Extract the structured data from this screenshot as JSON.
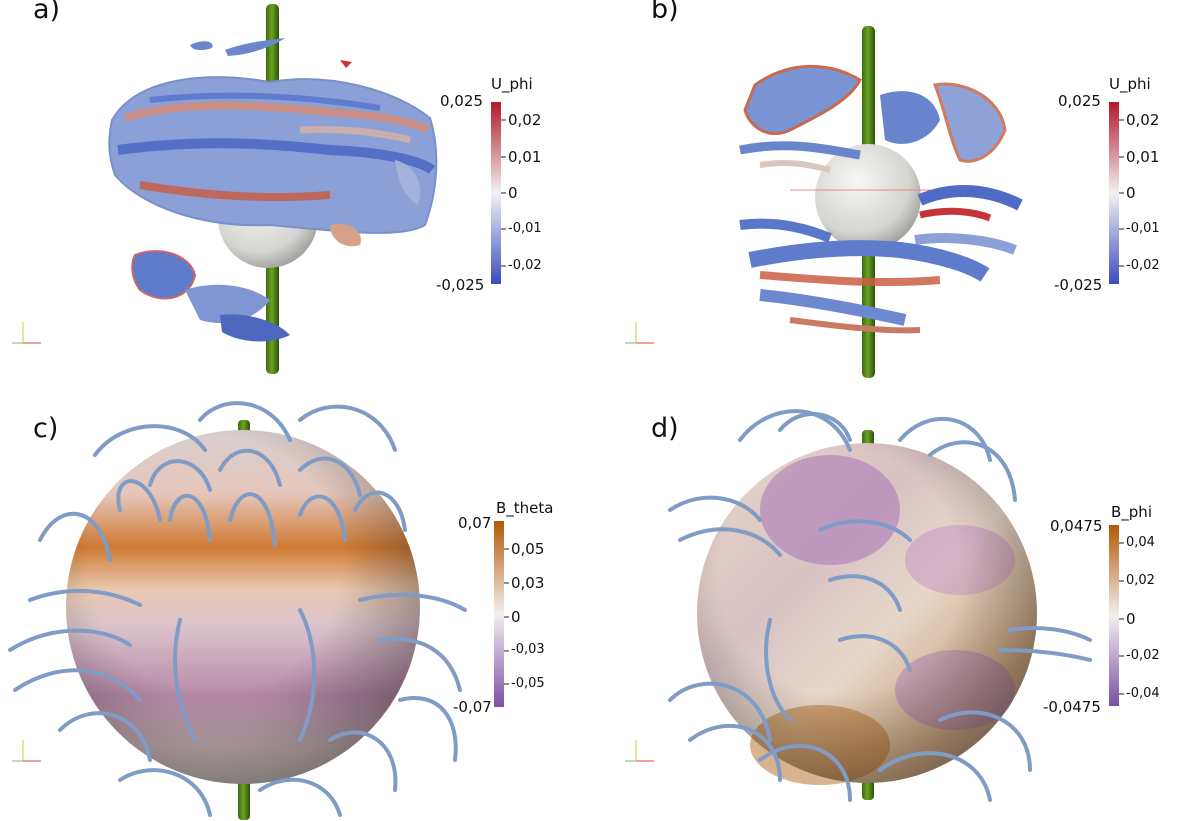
{
  "panels": [
    {
      "label": "a)",
      "colorbar": {
        "title": "U_phi",
        "max_label": "0,025",
        "min_label": "-0,025",
        "ticks": [
          "0,02",
          "0,01",
          "0",
          "-0,01",
          "-0,02"
        ],
        "colors": [
          "#b2182b",
          "#f2f2f2",
          "#3b4cc0"
        ]
      }
    },
    {
      "label": "b)",
      "colorbar": {
        "title": "U_phi",
        "max_label": "0,025",
        "min_label": "-0,025",
        "ticks": [
          "0,02",
          "0,01",
          "0",
          "-0,01",
          "-0,02"
        ],
        "colors": [
          "#b2182b",
          "#f2f2f2",
          "#3b4cc0"
        ]
      }
    },
    {
      "label": "c)",
      "colorbar": {
        "title": "B_theta",
        "max_label": "0,07",
        "min_label": "-0,07",
        "ticks": [
          "0,05",
          "0,03",
          "0",
          "-0,03",
          "-0,05"
        ],
        "colors": [
          "#b35806",
          "#f2f0ee",
          "#7b4fa6"
        ]
      }
    },
    {
      "label": "d)",
      "colorbar": {
        "title": "B_phi",
        "max_label": "0,0475",
        "min_label": "-0,0475",
        "ticks": [
          "0,04",
          "0,02",
          "0",
          "-0,02",
          "-0,04"
        ],
        "colors": [
          "#b35806",
          "#f2f0ee",
          "#7b4fa6"
        ]
      }
    }
  ]
}
